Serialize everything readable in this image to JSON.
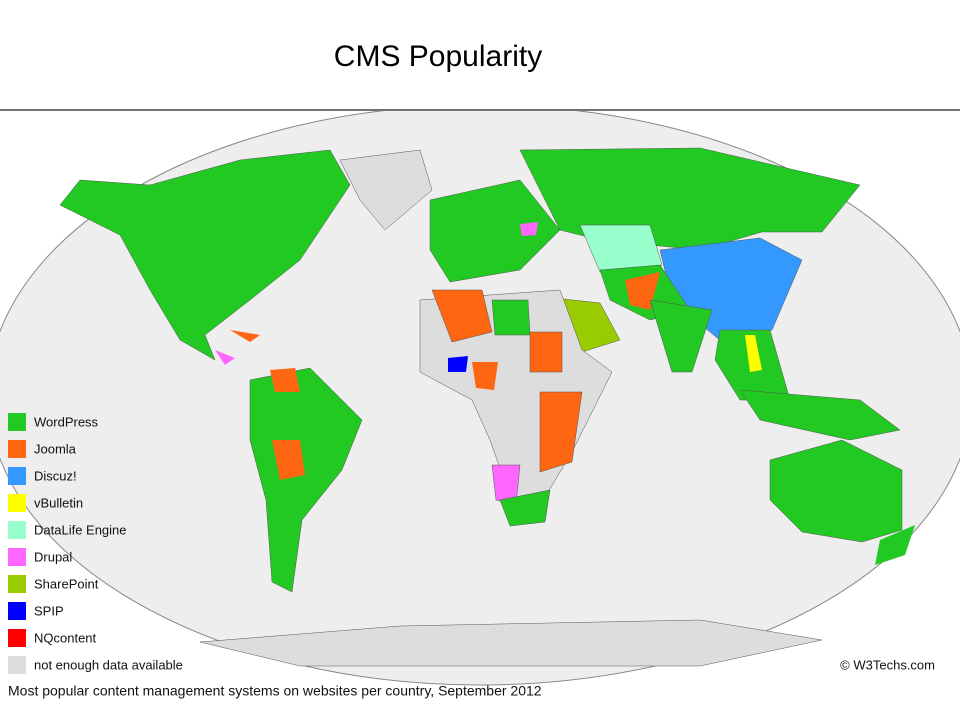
{
  "title": "CMS Popularity",
  "legend": [
    {
      "label": "WordPress",
      "color": "#22c922"
    },
    {
      "label": "Joomla",
      "color": "#ff6611"
    },
    {
      "label": "Discuz!",
      "color": "#3399ff"
    },
    {
      "label": "vBulletin",
      "color": "#ffff00"
    },
    {
      "label": "DataLife Engine",
      "color": "#99ffcc"
    },
    {
      "label": "Drupal",
      "color": "#ff66ff"
    },
    {
      "label": "SharePoint",
      "color": "#99cc00"
    },
    {
      "label": "SPIP",
      "color": "#0000ff"
    },
    {
      "label": "NQcontent",
      "color": "#ff0000"
    },
    {
      "label": "not enough data available",
      "color": "#dddddd"
    }
  ],
  "credit": "© W3Techs.com",
  "caption": "Most popular content management systems on websites per country, September 2012"
}
